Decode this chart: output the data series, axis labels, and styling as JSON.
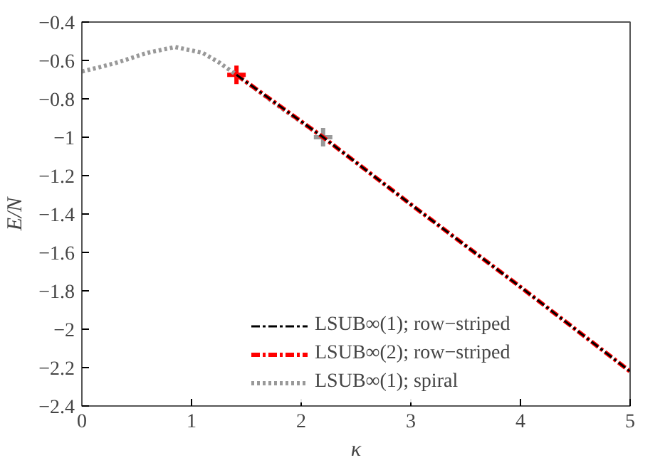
{
  "chart_data": {
    "type": "line",
    "xlabel": "κ",
    "ylabel": "E/N",
    "xlim": [
      0,
      5
    ],
    "xticks": [
      0,
      1,
      2,
      3,
      4,
      5
    ],
    "ylim": [
      -2.4,
      -0.4
    ],
    "yticks": [
      {
        "value": -2.4,
        "label": "−2.4"
      },
      {
        "value": -2.2,
        "label": "−2.2"
      },
      {
        "value": -2,
        "label": "−2"
      },
      {
        "value": -1.8,
        "label": "−1.8"
      },
      {
        "value": -1.6,
        "label": "−1.6"
      },
      {
        "value": -1.4,
        "label": "−1.4"
      },
      {
        "value": -1.2,
        "label": "−1.2"
      },
      {
        "value": -1,
        "label": "−1"
      },
      {
        "value": -0.8,
        "label": "−0.8"
      },
      {
        "value": -0.6,
        "label": "−0.6"
      },
      {
        "value": -0.4,
        "label": "−0.4"
      }
    ],
    "grid": false,
    "legend": "bottom right",
    "marker": "none",
    "series": [
      {
        "name": "LSUB∞(1); row−striped",
        "color": "#000000",
        "line_style": "dashdot",
        "x": [
          1.41,
          2.2,
          3,
          4,
          5
        ],
        "values": [
          -0.675,
          -1.0,
          -1.35,
          -1.78,
          -2.22
        ]
      },
      {
        "name": "LSUB∞(2); row−striped",
        "color": "#ff0000",
        "line_style": "dashdot",
        "x": [
          1.41,
          2.2,
          3,
          4,
          5
        ],
        "values": [
          -0.675,
          -1.0,
          -1.35,
          -1.78,
          -2.22
        ]
      },
      {
        "name": "LSUB∞(1); spiral",
        "color": "#999999",
        "line_style": "dotted",
        "x": [
          0,
          0.3,
          0.6,
          0.85,
          1.1,
          1.25,
          1.41,
          1.8,
          2.2
        ],
        "values": [
          -0.658,
          -0.615,
          -0.56,
          -0.53,
          -0.56,
          -0.61,
          -0.675,
          -0.84,
          -1.0
        ]
      },
      {
        "type": "scatter",
        "marker": "cross",
        "color": "#ff0000",
        "x": [
          1.41
        ],
        "values": [
          -0.675
        ]
      },
      {
        "type": "scatter",
        "marker": "cross",
        "color": "#999999",
        "x": [
          2.2
        ],
        "values": [
          -1.0
        ]
      }
    ]
  }
}
